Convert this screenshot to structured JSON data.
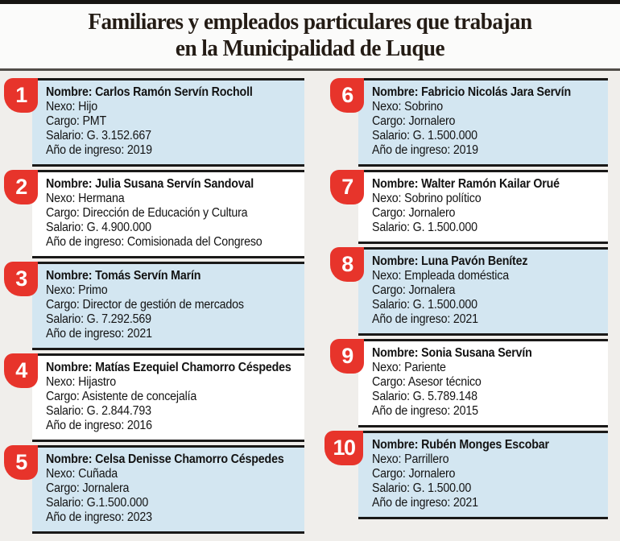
{
  "header": {
    "title_line1": "Familiares y empleados particulares que trabajan",
    "title_line2": "en la Municipalidad de Luque"
  },
  "labels": {
    "nombre": "Nombre:",
    "nexo": "Nexo:",
    "cargo": "Cargo:",
    "salario": "Salario:",
    "ingreso": "Año de ingreso:"
  },
  "colors": {
    "badge_red": "#e7342b",
    "card_blue": "#d3e6f1",
    "border_black": "#1a1918",
    "page_bg": "#f0eeeb"
  },
  "entries": [
    {
      "number": "1",
      "nombre": "Carlos Ramón Servín Rocholl",
      "nexo": "Hijo",
      "cargo": "PMT",
      "salario": "G. 3.152.667",
      "ingreso": "2019"
    },
    {
      "number": "2",
      "nombre": "Julia Susana Servín Sandoval",
      "nexo": "Hermana",
      "cargo": "Dirección de Educación y Cultura",
      "salario": "G. 4.900.000",
      "ingreso": "Comisionada del Congreso"
    },
    {
      "number": "3",
      "nombre": "Tomás Servín Marín",
      "nexo": "Primo",
      "cargo": "Director de gestión de mercados",
      "salario": "G. 7.292.569",
      "ingreso": "2021"
    },
    {
      "number": "4",
      "nombre": "Matías Ezequiel Chamorro Céspedes",
      "nexo": "Hijastro",
      "cargo": "Asistente de concejalía",
      "salario": "G. 2.844.793",
      "ingreso": "2016"
    },
    {
      "number": "5",
      "nombre": "Celsa Denisse Chamorro Céspedes",
      "nexo": "Cuñada",
      "cargo": "Jornalera",
      "salario": "G.1.500.000",
      "ingreso": "2023"
    },
    {
      "number": "6",
      "nombre": "Fabricio Nicolás Jara Servín",
      "nexo": "Sobrino",
      "cargo": "Jornalero",
      "salario": "G. 1.500.000",
      "ingreso": "2019"
    },
    {
      "number": "7",
      "nombre": "Walter Ramón Kailar Orué",
      "nexo": "Sobrino político",
      "cargo": "Jornalero",
      "salario": "G. 1.500.000"
    },
    {
      "number": "8",
      "nombre": "Luna Pavón Benítez",
      "nexo": "Empleada doméstica",
      "cargo": "Jornalera",
      "salario": "G. 1.500.000",
      "ingreso": "2021"
    },
    {
      "number": "9",
      "nombre": "Sonia Susana Servín",
      "nexo": "Pariente",
      "cargo": "Asesor técnico",
      "salario": "G. 5.789.148",
      "ingreso": "2015"
    },
    {
      "number": "10",
      "nombre": "Rubén Monges Escobar",
      "nexo": "Parrillero",
      "cargo": "Jornalero",
      "salario": "G. 1.500.00",
      "ingreso": "2021"
    }
  ]
}
